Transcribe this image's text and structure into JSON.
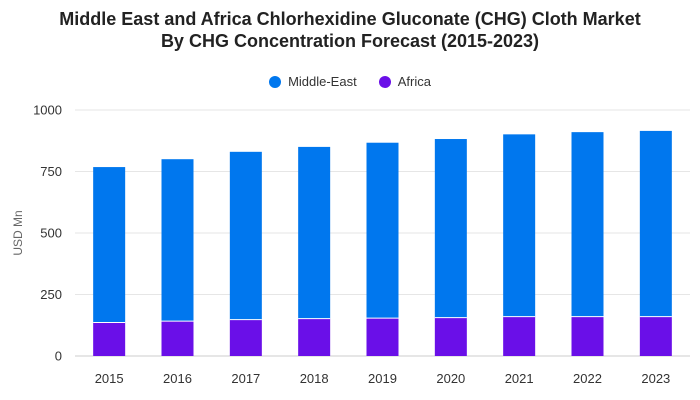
{
  "chart_data": {
    "type": "bar",
    "stacked": true,
    "title": "Middle East and Africa Chlorhexidine Gluconate (CHG) Cloth Market By CHG Concentration Forecast (2015-2023)",
    "title_lines": [
      "Middle East and Africa Chlorhexidine Gluconate (CHG) Cloth Market",
      "By CHG Concentration Forecast (2015-2023)"
    ],
    "xlabel": "",
    "ylabel": "USD Mn",
    "ylim": [
      0,
      1000
    ],
    "yticks": [
      0,
      250,
      500,
      750,
      1000
    ],
    "grid": true,
    "legend_position": "top-center",
    "categories": [
      "2015",
      "2016",
      "2017",
      "2018",
      "2019",
      "2020",
      "2021",
      "2022",
      "2023"
    ],
    "series": [
      {
        "name": "Middle-East",
        "color": "#0077ee",
        "values": [
          632,
          658,
          682,
          698,
          713,
          726,
          741,
          750,
          755
        ]
      },
      {
        "name": "Africa",
        "color": "#6a0fe8",
        "values": [
          136,
          142,
          148,
          152,
          154,
          156,
          160,
          160,
          160
        ]
      }
    ]
  }
}
